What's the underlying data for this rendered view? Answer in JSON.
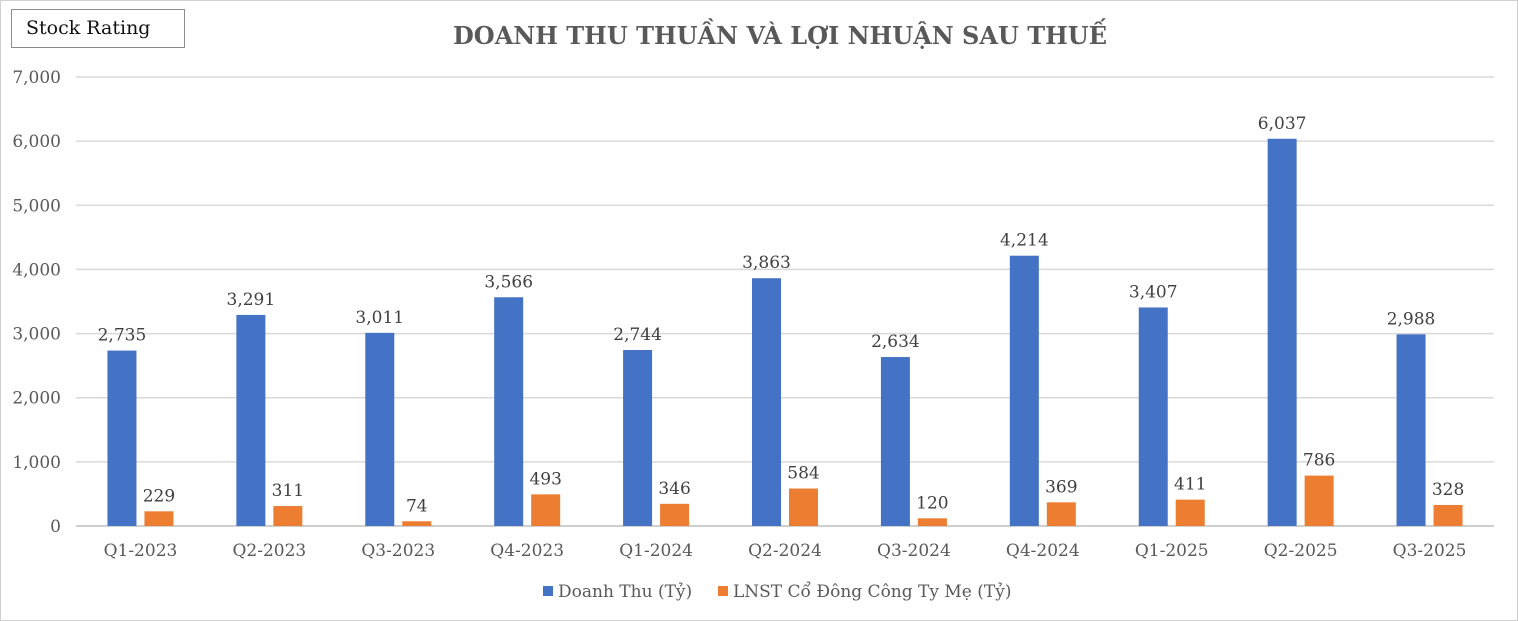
{
  "badge": {
    "label": "Stock Rating"
  },
  "chart_data": {
    "type": "bar",
    "title": "DOANH THU THUẦN VÀ LỢI NHUẬN SAU THUẾ",
    "categories": [
      "Q1-2023",
      "Q2-2023",
      "Q3-2023",
      "Q4-2023",
      "Q1-2024",
      "Q2-2024",
      "Q3-2024",
      "Q4-2024",
      "Q1-2025",
      "Q2-2025",
      "Q3-2025"
    ],
    "series": [
      {
        "name": "Doanh Thu (Tỷ)",
        "color": "#4472C4",
        "values": [
          2735,
          3291,
          3011,
          3566,
          2744,
          3863,
          2634,
          4214,
          3407,
          6037,
          2988
        ],
        "labels": [
          "2,735",
          "3,291",
          "3,011",
          "3,566",
          "2,744",
          "3,863",
          "2,634",
          "4,214",
          "3,407",
          "6,037",
          "2,988"
        ]
      },
      {
        "name": "LNST Cổ Đông Công Ty Mẹ (Tỷ)",
        "color": "#ED7D31",
        "values": [
          229,
          311,
          74,
          493,
          346,
          584,
          120,
          369,
          411,
          786,
          328
        ],
        "labels": [
          "229",
          "311",
          "74",
          "493",
          "346",
          "584",
          "120",
          "369",
          "411",
          "786",
          "328"
        ]
      }
    ],
    "ylim": [
      0,
      7000
    ],
    "yticks": [
      0,
      1000,
      2000,
      3000,
      4000,
      5000,
      6000,
      7000
    ],
    "ytick_labels": [
      "0",
      "1,000",
      "2,000",
      "3,000",
      "4,000",
      "5,000",
      "6,000",
      "7,000"
    ],
    "gridlines": true,
    "legend_position": "bottom-center",
    "xlabel": "",
    "ylabel": ""
  }
}
